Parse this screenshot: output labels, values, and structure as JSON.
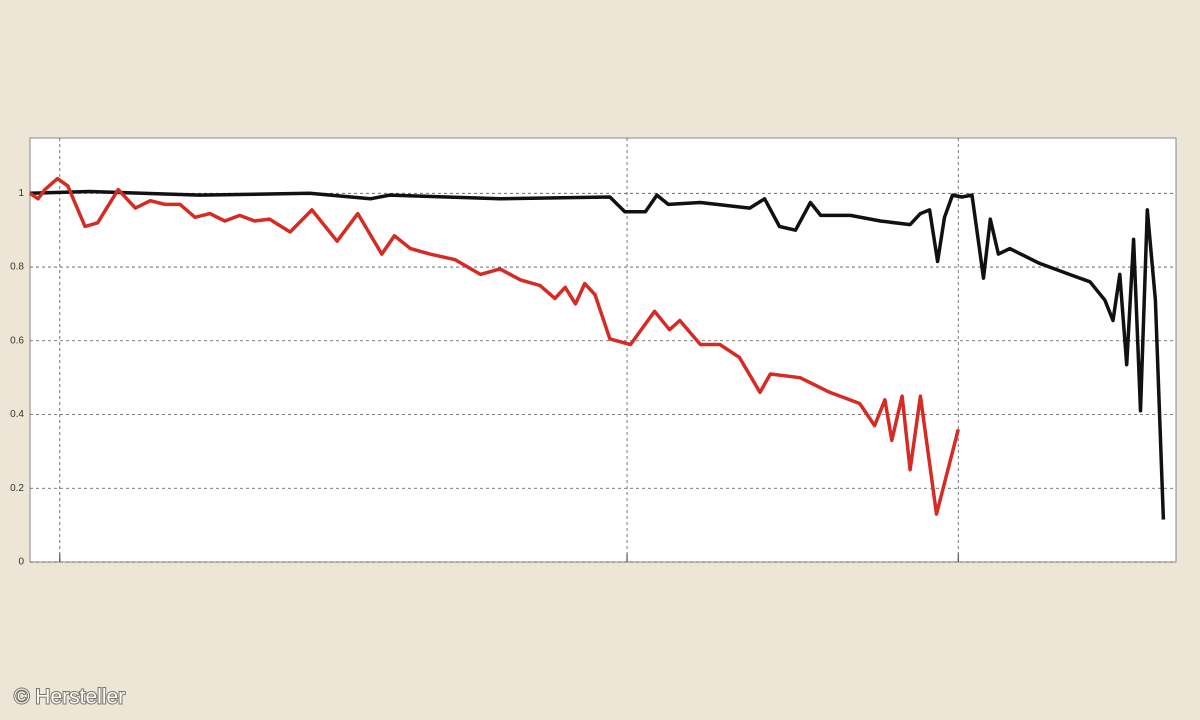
{
  "chart_data": {
    "type": "line",
    "xlim": [
      0,
      100
    ],
    "ylim": [
      0,
      1.15
    ],
    "xticks": [
      2.6,
      52.1,
      81.0
    ],
    "yticks": [
      0,
      0.2,
      0.4,
      0.6,
      0.8,
      1
    ],
    "grid": true,
    "credit": "© Hersteller",
    "series": [
      {
        "color": "#111111",
        "x": [
          0,
          5.2,
          14.8,
          24.4,
          29.7,
          31.4,
          41.0,
          50.6,
          51.9,
          53.7,
          54.7,
          55.7,
          58.5,
          62.8,
          64.1,
          65.4,
          66.8,
          68.1,
          69.0,
          71.6,
          74.2,
          76.8,
          77.7,
          78.5,
          79.2,
          79.8,
          80.5,
          81.3,
          82.2,
          83.2,
          83.8,
          84.5,
          85.5,
          88.1,
          90.7,
          92.5,
          93.8,
          94.5,
          95.1,
          95.7,
          96.3,
          96.9,
          97.5,
          98.2,
          98.9
        ],
        "values": [
          1.0,
          1.005,
          0.995,
          1.0,
          0.985,
          0.995,
          0.985,
          0.99,
          0.95,
          0.95,
          0.995,
          0.97,
          0.975,
          0.96,
          0.985,
          0.91,
          0.9,
          0.975,
          0.94,
          0.94,
          0.925,
          0.915,
          0.945,
          0.955,
          0.815,
          0.935,
          0.995,
          0.99,
          0.995,
          0.77,
          0.93,
          0.835,
          0.85,
          0.81,
          0.78,
          0.76,
          0.71,
          0.655,
          0.78,
          0.535,
          0.875,
          0.41,
          0.955,
          0.71,
          0.115
        ]
      },
      {
        "color": "#d62b24",
        "x": [
          0,
          0.7,
          1.3,
          2.4,
          3.3,
          4.8,
          5.9,
          7.7,
          9.2,
          10.5,
          11.8,
          13.1,
          14.4,
          15.7,
          17.0,
          18.3,
          19.6,
          20.9,
          22.7,
          24.6,
          26.8,
          28.6,
          30.7,
          31.8,
          33.2,
          34.9,
          37.1,
          39.3,
          41.0,
          42.8,
          44.5,
          45.8,
          46.7,
          47.6,
          48.4,
          49.3,
          50.6,
          52.4,
          54.5,
          55.8,
          56.7,
          58.5,
          60.2,
          61.9,
          63.7,
          64.6,
          67.2,
          69.8,
          72.4,
          73.7,
          74.6,
          75.2,
          76.1,
          76.8,
          77.7,
          79.1,
          81.0
        ],
        "values": [
          1.0,
          0.985,
          1.01,
          1.04,
          1.02,
          0.91,
          0.92,
          1.01,
          0.96,
          0.98,
          0.97,
          0.97,
          0.935,
          0.945,
          0.925,
          0.94,
          0.925,
          0.93,
          0.895,
          0.955,
          0.87,
          0.945,
          0.835,
          0.885,
          0.85,
          0.835,
          0.82,
          0.78,
          0.795,
          0.765,
          0.75,
          0.715,
          0.745,
          0.7,
          0.755,
          0.725,
          0.605,
          0.59,
          0.68,
          0.63,
          0.655,
          0.59,
          0.59,
          0.555,
          0.46,
          0.51,
          0.5,
          0.46,
          0.43,
          0.37,
          0.44,
          0.33,
          0.45,
          0.25,
          0.45,
          0.13,
          0.36
        ]
      }
    ]
  }
}
